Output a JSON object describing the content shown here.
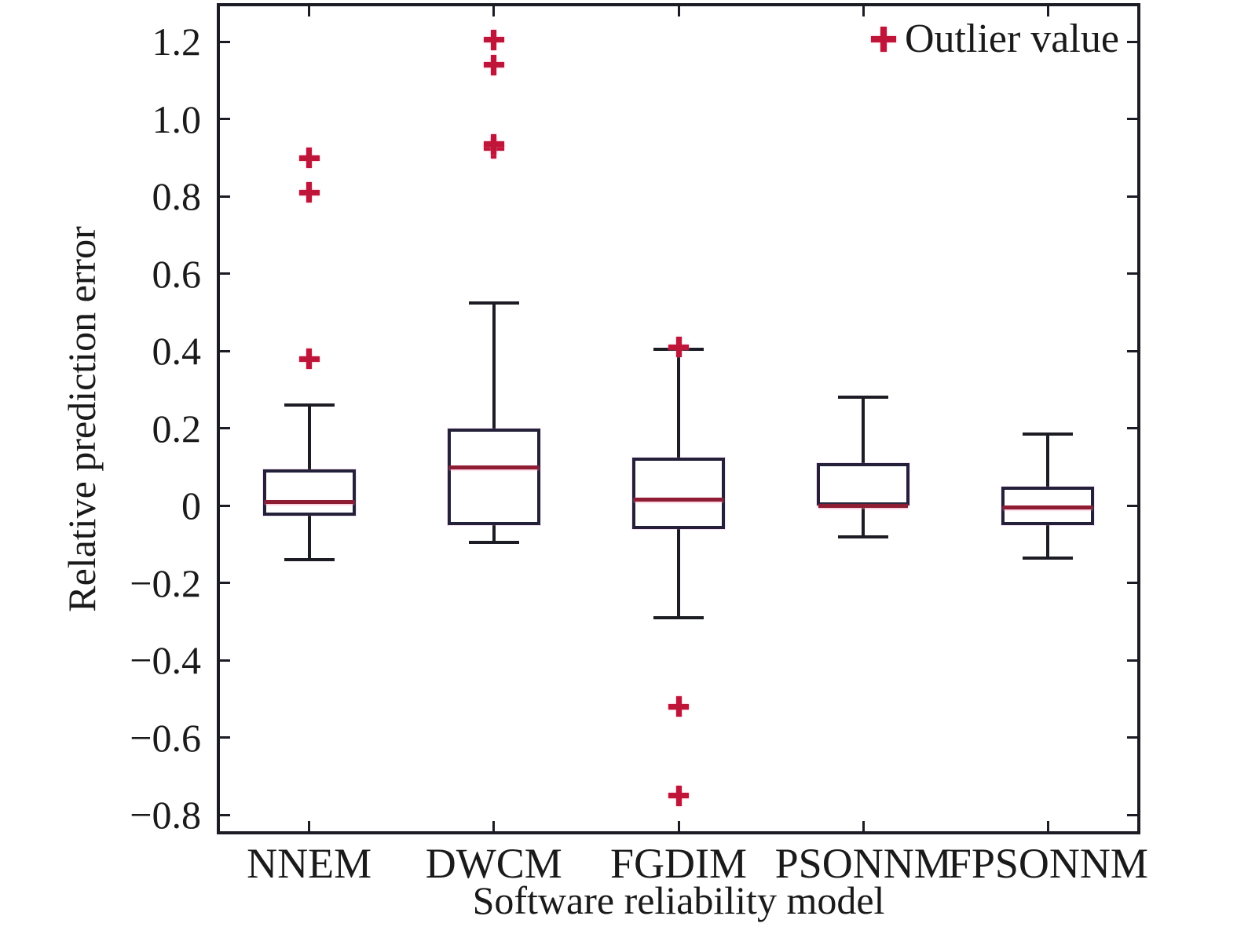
{
  "figure": {
    "colors": {
      "axis": "#1c1c24",
      "box_edge": "#23203a",
      "median": "#8e1d33",
      "median_glow": "#f38db4",
      "outlier": "#bf1538",
      "text": "#1a1a1a",
      "background": "#ffffff"
    }
  },
  "chart_data": {
    "type": "boxplot",
    "title": "",
    "xlabel": "Software reliability model",
    "ylabel": "Relative prediction error",
    "categories": [
      "NNEM",
      "DWCM",
      "FGDIM",
      "PSONNM",
      "FPSONNM"
    ],
    "ylim": [
      -0.85,
      1.3
    ],
    "yticks": [
      1.2,
      1.0,
      0.8,
      0.6,
      0.4,
      0.2,
      0,
      -0.2,
      -0.4,
      -0.6,
      -0.8
    ],
    "ytick_labels": [
      "1.2",
      "1.0",
      "0.8",
      "0.6",
      "0.4",
      "0.2",
      "0",
      "−0.2",
      "−0.4",
      "−0.6",
      "−0.8"
    ],
    "grid": false,
    "legend": {
      "label": "Outlier value",
      "marker": "plus-icon",
      "position": "top-right-inside"
    },
    "series": [
      {
        "name": "NNEM",
        "whisker_low": -0.14,
        "q1": -0.025,
        "median": 0.01,
        "q3": 0.095,
        "whisker_high": 0.26,
        "outliers": [
          0.38,
          0.81,
          0.9
        ]
      },
      {
        "name": "DWCM",
        "whisker_low": -0.095,
        "q1": -0.05,
        "median": 0.1,
        "q3": 0.2,
        "whisker_high": 0.525,
        "outliers": [
          0.925,
          0.935,
          1.14,
          1.205
        ]
      },
      {
        "name": "FGDIM",
        "whisker_low": -0.29,
        "q1": -0.06,
        "median": 0.015,
        "q3": 0.125,
        "whisker_high": 0.405,
        "outliers": [
          0.41,
          -0.52,
          -0.75
        ]
      },
      {
        "name": "PSONNM",
        "whisker_low": -0.08,
        "q1": 0.0,
        "median": 0.0,
        "q3": 0.11,
        "whisker_high": 0.28,
        "outliers": []
      },
      {
        "name": "FPSONNM",
        "whisker_low": -0.135,
        "q1": -0.05,
        "median": -0.005,
        "q3": 0.05,
        "whisker_high": 0.185,
        "outliers": []
      }
    ]
  }
}
